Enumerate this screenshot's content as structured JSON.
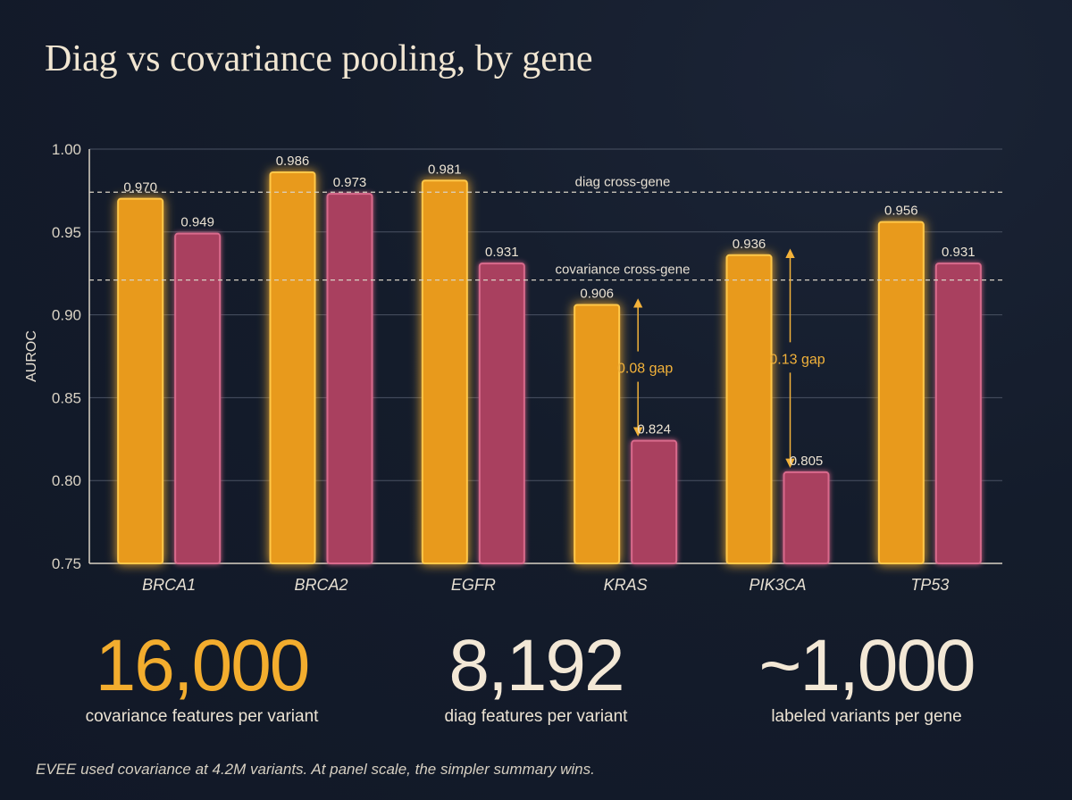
{
  "title": "Diag vs covariance pooling, by gene",
  "chart_data": {
    "type": "bar",
    "ylabel": "AUROC",
    "ylim": [
      0.75,
      1.0
    ],
    "yticks": [
      "1.00",
      "0.95",
      "0.90",
      "0.85",
      "0.80",
      "0.75"
    ],
    "categories": [
      "BRCA1",
      "BRCA2",
      "EGFR",
      "KRAS",
      "PIK3CA",
      "TP53"
    ],
    "series": [
      {
        "name": "diag",
        "color": "#f0a020",
        "values": [
          0.97,
          0.986,
          0.981,
          0.906,
          0.936,
          0.956
        ],
        "labels": [
          "0.970",
          "0.986",
          "0.981",
          "0.906",
          "0.936",
          "0.956"
        ]
      },
      {
        "name": "covariance",
        "color": "#b8476a",
        "values": [
          0.949,
          0.973,
          0.931,
          0.824,
          0.805,
          0.931
        ],
        "labels": [
          "0.949",
          "0.973",
          "0.931",
          "0.824",
          "0.805",
          "0.931"
        ]
      }
    ],
    "reference_lines": [
      {
        "label": "diag cross-gene",
        "value": 0.974
      },
      {
        "label": "covariance cross-gene",
        "value": 0.921
      }
    ],
    "annotations": [
      {
        "category": "KRAS",
        "label": "0.08 gap",
        "from": 0.906,
        "to": 0.824
      },
      {
        "category": "PIK3CA",
        "label": "0.13 gap",
        "from": 0.936,
        "to": 0.805
      }
    ]
  },
  "stats": [
    {
      "number": "16,000",
      "description": "covariance features per variant",
      "color": "#f3ad2e"
    },
    {
      "number": "8,192",
      "description": "diag features per variant",
      "color": "#f3e8d6"
    },
    {
      "number": "~1,000",
      "description": "labeled variants per gene",
      "color": "#f3e8d6"
    }
  ],
  "footnote": "EVEE used covariance at 4.2M variants. At panel scale, the simpler summary wins."
}
